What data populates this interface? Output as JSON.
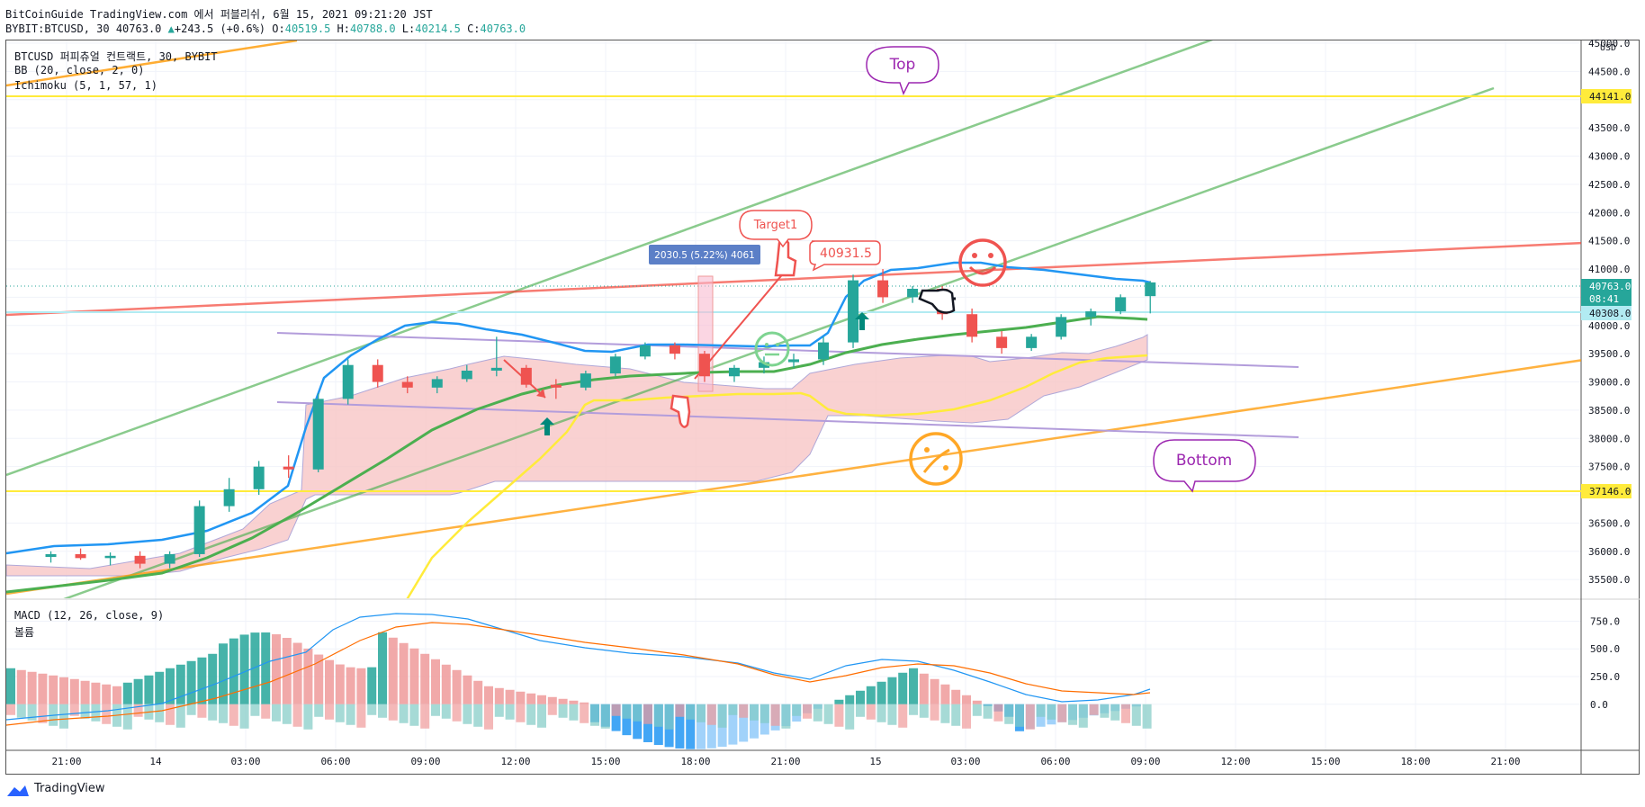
{
  "header": {
    "line1": "BitCoinGuide TradingView.com 에서 퍼블리쉬, 6월 15, 2021 09:21:20 JST",
    "symbol": "BYBIT:BTCUSD, 30",
    "last": "40763.0",
    "change": "+243.5 (+0.6%)",
    "o_label": "O:",
    "o": "40519.5",
    "h_label": "H:",
    "h": "40788.0",
    "l_label": "L:",
    "l": "40214.5",
    "c_label": "C:",
    "c": "40763.0"
  },
  "legend": {
    "main": "BTCUSD 퍼피츄얼 컨트랙트, 30, BYBIT",
    "bb": "BB (20, close, 2, 0)",
    "ichimoku": "Ichimoku (5, 1, 57, 1)",
    "macd": "MACD (12, 26, close, 9)",
    "volume": "볼륨"
  },
  "annotations": {
    "top": "Top",
    "bottom": "Bottom",
    "target": "Target1",
    "target_price": "40931.5",
    "measure": "2030.5 (5.22%) 4061"
  },
  "price_axis": {
    "currency": "USD",
    "ticks": [
      "45000.0",
      "44500.0",
      "44000.0",
      "43500.0",
      "43000.0",
      "42500.0",
      "42000.0",
      "41500.0",
      "41000.0",
      "40500.0",
      "40000.0",
      "39500.0",
      "39000.0",
      "38500.0",
      "38000.0",
      "37500.0",
      "37000.0",
      "36500.0",
      "36000.0",
      "35500.0"
    ],
    "label_top": "44141.0",
    "label_last": "40763.0",
    "label_countdown": "08:41",
    "label_mid": "40308.0",
    "label_bottom": "37146.0"
  },
  "macd_axis": {
    "ticks": [
      "750.0",
      "500.0",
      "250.0",
      "0.0"
    ]
  },
  "time_axis": {
    "ticks": [
      "21:00",
      "14",
      "03:00",
      "06:00",
      "09:00",
      "12:00",
      "15:00",
      "18:00",
      "21:00",
      "15",
      "03:00",
      "06:00",
      "09:00",
      "12:00",
      "15:00",
      "18:00",
      "21:00"
    ]
  },
  "footer": {
    "brand": "TradingView"
  },
  "colors": {
    "up": "#26a69a",
    "down": "#ef5350",
    "bb_mid": "#2196f3",
    "top_line": "#ffeb3b",
    "green_line": "#4caf50",
    "orange_line": "#ff9800",
    "red_line": "#f44336",
    "purple_line": "#b39ddb",
    "cloud": "#f8c5c5"
  },
  "chart_data": {
    "type": "candlestick",
    "interval": "30",
    "ylim": [
      35200,
      45000
    ],
    "time_range": [
      "2021-06-13 18:30",
      "2021-06-15 23:30"
    ],
    "key_levels": [
      44141.0,
      40308.0,
      37146.0
    ],
    "last_price": 40763.0,
    "candles": [
      {
        "t": "2021-06-13 20:00",
        "o": 35900,
        "h": 36000,
        "l": 35800,
        "c": 35950
      },
      {
        "t": "2021-06-13 21:00",
        "o": 35950,
        "h": 36050,
        "l": 35850,
        "c": 35880
      },
      {
        "t": "2021-06-13 22:00",
        "o": 35880,
        "h": 35980,
        "l": 35750,
        "c": 35920
      },
      {
        "t": "2021-06-13 23:00",
        "o": 35920,
        "h": 36000,
        "l": 35700,
        "c": 35780
      },
      {
        "t": "2021-06-14 00:00",
        "o": 35780,
        "h": 36000,
        "l": 35700,
        "c": 35950
      },
      {
        "t": "2021-06-14 01:00",
        "o": 35950,
        "h": 36900,
        "l": 35900,
        "c": 36800
      },
      {
        "t": "2021-06-14 02:00",
        "o": 36800,
        "h": 37300,
        "l": 36700,
        "c": 37100
      },
      {
        "t": "2021-06-14 03:00",
        "o": 37100,
        "h": 37600,
        "l": 37000,
        "c": 37500
      },
      {
        "t": "2021-06-14 04:00",
        "o": 37500,
        "h": 37700,
        "l": 37300,
        "c": 37450
      },
      {
        "t": "2021-06-14 05:00",
        "o": 37450,
        "h": 38800,
        "l": 37400,
        "c": 38700
      },
      {
        "t": "2021-06-14 06:00",
        "o": 38700,
        "h": 39400,
        "l": 38600,
        "c": 39300
      },
      {
        "t": "2021-06-14 07:00",
        "o": 39300,
        "h": 39400,
        "l": 38900,
        "c": 39000
      },
      {
        "t": "2021-06-14 08:00",
        "o": 39000,
        "h": 39100,
        "l": 38800,
        "c": 38900
      },
      {
        "t": "2021-06-14 09:00",
        "o": 38900,
        "h": 39100,
        "l": 38800,
        "c": 39050
      },
      {
        "t": "2021-06-14 10:00",
        "o": 39050,
        "h": 39300,
        "l": 39000,
        "c": 39200
      },
      {
        "t": "2021-06-14 11:00",
        "o": 39200,
        "h": 39800,
        "l": 39100,
        "c": 39250
      },
      {
        "t": "2021-06-14 12:00",
        "o": 39250,
        "h": 39300,
        "l": 38900,
        "c": 38950
      },
      {
        "t": "2021-06-14 13:00",
        "o": 38950,
        "h": 39050,
        "l": 38700,
        "c": 38900
      },
      {
        "t": "2021-06-14 14:00",
        "o": 38900,
        "h": 39200,
        "l": 38850,
        "c": 39150
      },
      {
        "t": "2021-06-14 15:00",
        "o": 39150,
        "h": 39500,
        "l": 39100,
        "c": 39450
      },
      {
        "t": "2021-06-14 16:00",
        "o": 39450,
        "h": 39700,
        "l": 39400,
        "c": 39650
      },
      {
        "t": "2021-06-14 17:00",
        "o": 39650,
        "h": 39700,
        "l": 39400,
        "c": 39500
      },
      {
        "t": "2021-06-14 18:00",
        "o": 39500,
        "h": 39550,
        "l": 39000,
        "c": 39100
      },
      {
        "t": "2021-06-14 19:00",
        "o": 39100,
        "h": 39300,
        "l": 39000,
        "c": 39250
      },
      {
        "t": "2021-06-14 20:00",
        "o": 39250,
        "h": 39450,
        "l": 39150,
        "c": 39350
      },
      {
        "t": "2021-06-14 21:00",
        "o": 39350,
        "h": 39500,
        "l": 39250,
        "c": 39400
      },
      {
        "t": "2021-06-14 22:00",
        "o": 39400,
        "h": 39800,
        "l": 39300,
        "c": 39700
      },
      {
        "t": "2021-06-14 23:00",
        "o": 39700,
        "h": 40900,
        "l": 39600,
        "c": 40800
      },
      {
        "t": "2021-06-15 00:00",
        "o": 40800,
        "h": 41000,
        "l": 40400,
        "c": 40500
      },
      {
        "t": "2021-06-15 01:00",
        "o": 40500,
        "h": 40700,
        "l": 40400,
        "c": 40650
      },
      {
        "t": "2021-06-15 02:00",
        "o": 40650,
        "h": 40700,
        "l": 40100,
        "c": 40200
      },
      {
        "t": "2021-06-15 03:00",
        "o": 40200,
        "h": 40300,
        "l": 39700,
        "c": 39800
      },
      {
        "t": "2021-06-15 04:00",
        "o": 39800,
        "h": 39900,
        "l": 39500,
        "c": 39600
      },
      {
        "t": "2021-06-15 05:00",
        "o": 39600,
        "h": 39850,
        "l": 39550,
        "c": 39800
      },
      {
        "t": "2021-06-15 06:00",
        "o": 39800,
        "h": 40200,
        "l": 39750,
        "c": 40150
      },
      {
        "t": "2021-06-15 07:00",
        "o": 40150,
        "h": 40300,
        "l": 40000,
        "c": 40250
      },
      {
        "t": "2021-06-15 08:00",
        "o": 40250,
        "h": 40550,
        "l": 40200,
        "c": 40500
      },
      {
        "t": "2021-06-15 09:00",
        "o": 40519.5,
        "h": 40788,
        "l": 40214.5,
        "c": 40763
      }
    ],
    "macd_ylim": [
      -400,
      900
    ]
  }
}
